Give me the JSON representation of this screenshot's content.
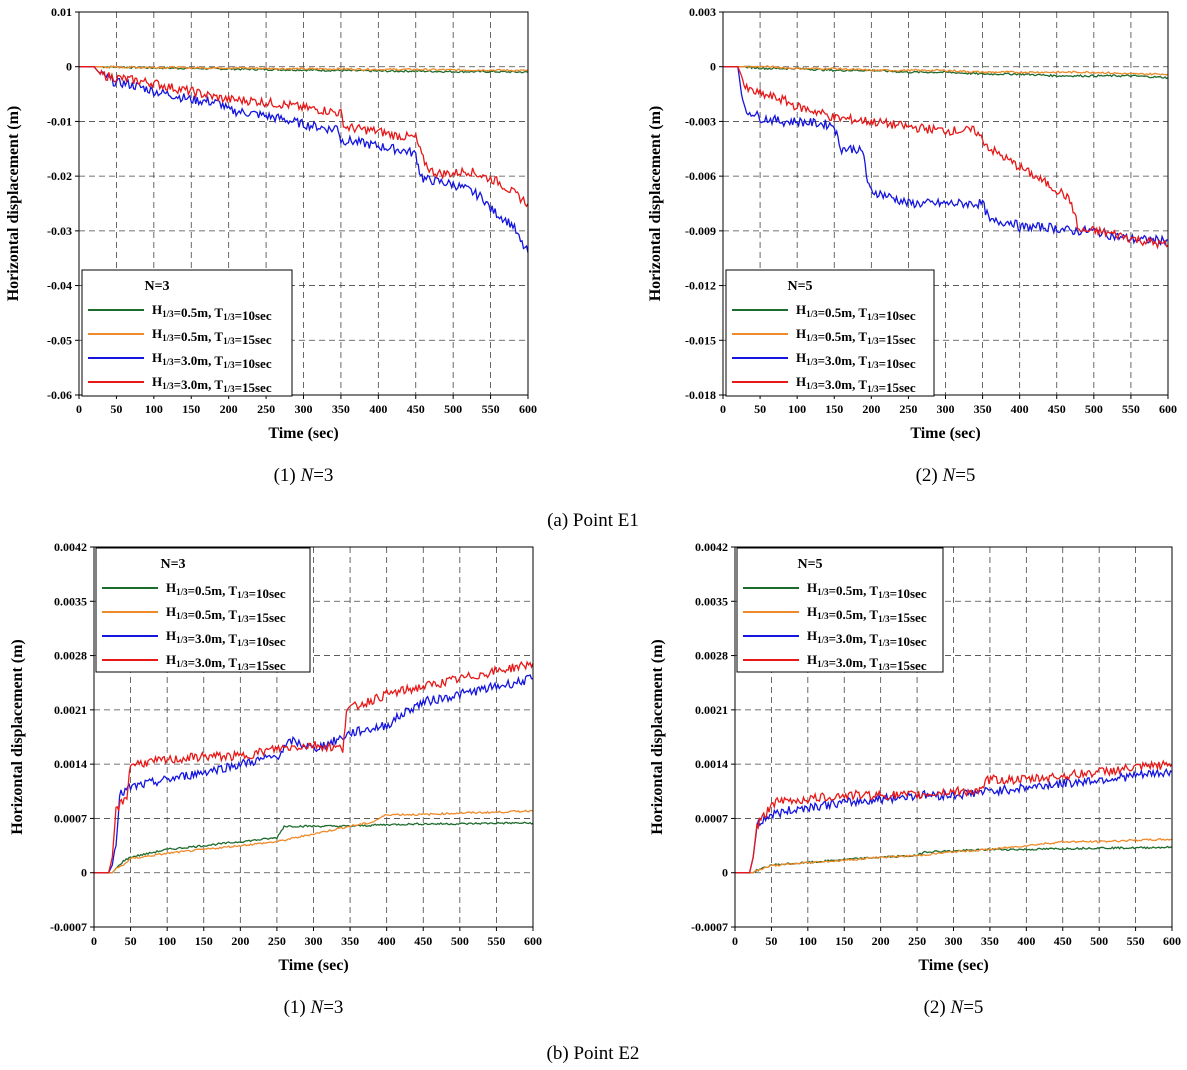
{
  "series_styles": [
    {
      "color": "#1e6b2e"
    },
    {
      "color": "#ef8a2a"
    },
    {
      "color": "#1515e0"
    },
    {
      "color": "#e81818"
    }
  ],
  "legend_labels": [
    {
      "h": "H",
      "hsub": "1/3",
      "hval": "=0.5m, ",
      "t": "T",
      "tsub": "1/3",
      "tval": "=10sec"
    },
    {
      "h": "H",
      "hsub": "1/3",
      "hval": "=0.5m, ",
      "t": "T",
      "tsub": "1/3",
      "tval": "=15sec"
    },
    {
      "h": "H",
      "hsub": "1/3",
      "hval": "=3.0m, ",
      "t": "T",
      "tsub": "1/3",
      "tval": "=10sec"
    },
    {
      "h": "H",
      "hsub": "1/3",
      "hval": "=3.0m, ",
      "t": "T",
      "tsub": "1/3",
      "tval": "=15sec"
    }
  ],
  "captions": {
    "group_a": "(a)  Point  E1",
    "group_b": "(b) Point  E2"
  },
  "chart_data": [
    {
      "type": "line",
      "panel": "a1",
      "subcaption": {
        "prefix": "(1)  ",
        "var": "N",
        "suffix": "=3"
      },
      "legend_title": "N=3",
      "xlabel": "Time (sec)",
      "ylabel": "Horizontal displacement (m)",
      "xlim": [
        0,
        600
      ],
      "ylim": [
        -0.06,
        0.01
      ],
      "xticks": [
        "0",
        "50",
        "100",
        "150",
        "200",
        "250",
        "300",
        "350",
        "400",
        "450",
        "500",
        "550",
        "600"
      ],
      "yticks": [
        "0.01",
        "0",
        "-0.01",
        "-0.02",
        "-0.03",
        "-0.04",
        "-0.05",
        "-0.06"
      ],
      "ytick_values": [
        0.01,
        0,
        -0.01,
        -0.02,
        -0.03,
        -0.04,
        -0.05,
        -0.06
      ],
      "grid": true,
      "legend_position": "bottom-left",
      "series": [
        {
          "name": "H1/3=0.5m, T1/3=10sec",
          "x": [
            0,
            25,
            60,
            100,
            150,
            200,
            250,
            300,
            350,
            400,
            450,
            500,
            550,
            600
          ],
          "y": [
            0,
            0,
            -0.0001,
            -0.0002,
            -0.0003,
            -0.0004,
            -0.0005,
            -0.0006,
            -0.0007,
            -0.0008,
            -0.0008,
            -0.0009,
            -0.0009,
            -0.001
          ]
        },
        {
          "name": "H1/3=0.5m, T1/3=15sec",
          "x": [
            0,
            25,
            60,
            100,
            150,
            200,
            250,
            300,
            350,
            400,
            450,
            500,
            550,
            600
          ],
          "y": [
            0,
            0,
            -0.0001,
            -0.0001,
            -0.0002,
            -0.0002,
            -0.0003,
            -0.0004,
            -0.0004,
            -0.0005,
            -0.0005,
            -0.0006,
            -0.0006,
            -0.0007
          ]
        },
        {
          "name": "H1/3=3.0m, T1/3=10sec",
          "x": [
            0,
            20,
            25,
            30,
            40,
            50,
            60,
            75,
            90,
            100,
            120,
            150,
            180,
            190,
            200,
            230,
            250,
            270,
            300,
            320,
            340,
            345,
            350,
            360,
            380,
            400,
            420,
            440,
            450,
            455,
            460,
            480,
            500,
            520,
            540,
            550,
            560,
            580,
            590,
            600
          ],
          "y": [
            0,
            0,
            -0.0008,
            -0.0015,
            -0.0022,
            -0.003,
            -0.003,
            -0.0035,
            -0.004,
            -0.0045,
            -0.005,
            -0.006,
            -0.0065,
            -0.0068,
            -0.008,
            -0.0085,
            -0.009,
            -0.0095,
            -0.0105,
            -0.011,
            -0.0115,
            -0.0105,
            -0.0135,
            -0.0135,
            -0.014,
            -0.0145,
            -0.015,
            -0.0155,
            -0.016,
            -0.019,
            -0.0205,
            -0.021,
            -0.0215,
            -0.0225,
            -0.024,
            -0.026,
            -0.027,
            -0.029,
            -0.032,
            -0.034
          ]
        },
        {
          "name": "H1/3=3.0m, T1/3=15sec",
          "x": [
            0,
            20,
            25,
            30,
            50,
            75,
            100,
            130,
            150,
            180,
            200,
            230,
            250,
            280,
            300,
            330,
            350,
            355,
            380,
            400,
            420,
            450,
            460,
            470,
            480,
            500,
            520,
            540,
            560,
            580,
            590,
            600
          ],
          "y": [
            0,
            0,
            -0.0008,
            -0.0015,
            -0.002,
            -0.0025,
            -0.003,
            -0.004,
            -0.0045,
            -0.0055,
            -0.006,
            -0.0062,
            -0.0065,
            -0.007,
            -0.0075,
            -0.008,
            -0.0085,
            -0.011,
            -0.0115,
            -0.0118,
            -0.0125,
            -0.013,
            -0.017,
            -0.019,
            -0.0195,
            -0.0195,
            -0.019,
            -0.02,
            -0.021,
            -0.023,
            -0.024,
            -0.025
          ]
        }
      ]
    },
    {
      "type": "line",
      "panel": "a2",
      "subcaption": {
        "prefix": "(2)  ",
        "var": "N",
        "suffix": "=5"
      },
      "legend_title": "N=5",
      "xlabel": "Time (sec)",
      "ylabel": "Horizontal displacement (m)",
      "xlim": [
        0,
        600
      ],
      "ylim": [
        -0.018,
        0.003
      ],
      "xticks": [
        "0",
        "50",
        "100",
        "150",
        "200",
        "250",
        "300",
        "350",
        "400",
        "450",
        "500",
        "550",
        "600"
      ],
      "yticks": [
        "0.003",
        "0",
        "-0.003",
        "-0.006",
        "-0.009",
        "-0.012",
        "-0.015",
        "-0.018"
      ],
      "ytick_values": [
        0.003,
        0,
        -0.003,
        -0.006,
        -0.009,
        -0.012,
        -0.015,
        -0.018
      ],
      "grid": true,
      "legend_position": "bottom-left",
      "series": [
        {
          "name": "H1/3=0.5m, T1/3=10sec",
          "x": [
            0,
            25,
            60,
            100,
            150,
            200,
            250,
            300,
            350,
            400,
            450,
            500,
            550,
            600
          ],
          "y": [
            0,
            0,
            -0.0001,
            -0.0001,
            -0.0002,
            -0.0002,
            -0.0003,
            -0.0003,
            -0.0004,
            -0.0004,
            -0.0005,
            -0.0005,
            -0.0005,
            -0.0006
          ]
        },
        {
          "name": "H1/3=0.5m, T1/3=15sec",
          "x": [
            0,
            25,
            60,
            100,
            150,
            200,
            250,
            300,
            350,
            400,
            450,
            500,
            550,
            600
          ],
          "y": [
            0,
            0,
            0,
            -0.0001,
            -0.0001,
            -0.0002,
            -0.0002,
            -0.0002,
            -0.0003,
            -0.0003,
            -0.0003,
            -0.0003,
            -0.0004,
            -0.0004
          ]
        },
        {
          "name": "H1/3=3.0m, T1/3=10sec",
          "x": [
            0,
            20,
            25,
            30,
            40,
            50,
            80,
            100,
            150,
            155,
            160,
            180,
            190,
            195,
            200,
            230,
            250,
            300,
            350,
            360,
            390,
            400,
            440,
            470,
            500,
            530,
            560,
            600
          ],
          "y": [
            0,
            0,
            -0.0015,
            -0.0025,
            -0.0025,
            -0.0028,
            -0.003,
            -0.003,
            -0.0032,
            -0.004,
            -0.0045,
            -0.0045,
            -0.0048,
            -0.0065,
            -0.0068,
            -0.0072,
            -0.0075,
            -0.0075,
            -0.0075,
            -0.0085,
            -0.0085,
            -0.0088,
            -0.0088,
            -0.009,
            -0.009,
            -0.0093,
            -0.0095,
            -0.0095
          ]
        },
        {
          "name": "H1/3=3.0m, T1/3=15sec",
          "x": [
            0,
            20,
            25,
            30,
            50,
            80,
            100,
            130,
            150,
            200,
            250,
            300,
            340,
            350,
            360,
            380,
            400,
            420,
            440,
            460,
            470,
            480,
            500,
            530,
            560,
            600
          ],
          "y": [
            0,
            0,
            -0.0005,
            -0.0012,
            -0.0015,
            -0.0018,
            -0.0022,
            -0.0025,
            -0.0028,
            -0.003,
            -0.0033,
            -0.0035,
            -0.0035,
            -0.004,
            -0.0045,
            -0.005,
            -0.0055,
            -0.006,
            -0.0065,
            -0.007,
            -0.0075,
            -0.009,
            -0.009,
            -0.0092,
            -0.0095,
            -0.0098
          ]
        }
      ]
    },
    {
      "type": "line",
      "panel": "b1",
      "subcaption": {
        "prefix": "(1)  ",
        "var": "N",
        "suffix": "=3"
      },
      "legend_title": "N=3",
      "xlabel": "Time (sec)",
      "ylabel": "Horizontal displacement (m)",
      "xlim": [
        0,
        600
      ],
      "ylim": [
        -0.0007,
        0.0042
      ],
      "xticks": [
        "0",
        "50",
        "100",
        "150",
        "200",
        "250",
        "300",
        "350",
        "400",
        "450",
        "500",
        "550",
        "600"
      ],
      "yticks": [
        "0.0042",
        "0.0035",
        "0.0028",
        "0.0021",
        "0.0014",
        "0.0007",
        "0",
        "-0.0007"
      ],
      "ytick_values": [
        0.0042,
        0.0035,
        0.0028,
        0.0021,
        0.0014,
        0.0007,
        0,
        -0.0007
      ],
      "grid": true,
      "legend_position": "top-left",
      "series": [
        {
          "name": "H1/3=0.5m, T1/3=10sec",
          "x": [
            0,
            25,
            30,
            40,
            50,
            100,
            150,
            200,
            250,
            260,
            300,
            350,
            400,
            450,
            500,
            550,
            600
          ],
          "y": [
            0,
            0,
            5e-05,
            0.00015,
            0.0002,
            0.0003,
            0.00035,
            0.0004,
            0.00045,
            0.0006,
            0.0006,
            0.0006,
            0.00062,
            0.00063,
            0.00063,
            0.00064,
            0.00064
          ]
        },
        {
          "name": "H1/3=0.5m, T1/3=15sec",
          "x": [
            0,
            25,
            30,
            40,
            50,
            100,
            150,
            200,
            250,
            300,
            350,
            380,
            400,
            450,
            500,
            550,
            600
          ],
          "y": [
            0,
            0,
            5e-05,
            0.0001,
            0.00018,
            0.00025,
            0.0003,
            0.00035,
            0.0004,
            0.0005,
            0.0006,
            0.00065,
            0.00075,
            0.00075,
            0.00077,
            0.00078,
            0.0008
          ]
        },
        {
          "name": "H1/3=3.0m, T1/3=10sec",
          "x": [
            0,
            20,
            25,
            30,
            35,
            50,
            100,
            150,
            200,
            250,
            270,
            300,
            330,
            350,
            400,
            430,
            450,
            500,
            550,
            600
          ],
          "y": [
            0,
            0,
            0.0001,
            0.0004,
            0.001,
            0.0011,
            0.0012,
            0.0013,
            0.0014,
            0.0015,
            0.0017,
            0.0016,
            0.0017,
            0.0018,
            0.0019,
            0.0021,
            0.0022,
            0.0023,
            0.0024,
            0.0025
          ]
        },
        {
          "name": "H1/3=3.0m, T1/3=15sec",
          "x": [
            0,
            20,
            25,
            30,
            45,
            50,
            100,
            150,
            200,
            250,
            300,
            340,
            345,
            400,
            450,
            500,
            550,
            600
          ],
          "y": [
            0,
            0,
            0.0002,
            0.0008,
            0.001,
            0.0014,
            0.00145,
            0.0015,
            0.0015,
            0.0016,
            0.00165,
            0.0016,
            0.0021,
            0.0023,
            0.0024,
            0.0025,
            0.0026,
            0.0027
          ]
        }
      ]
    },
    {
      "type": "line",
      "panel": "b2",
      "subcaption": {
        "prefix": "(2)  ",
        "var": "N",
        "suffix": "=5"
      },
      "legend_title": "N=5",
      "xlabel": "Time (sec)",
      "ylabel": "Horizontal displacement (m)",
      "xlim": [
        0,
        600
      ],
      "ylim": [
        -0.0007,
        0.0042
      ],
      "xticks": [
        "0",
        "50",
        "100",
        "150",
        "200",
        "250",
        "300",
        "350",
        "400",
        "450",
        "500",
        "550",
        "600"
      ],
      "yticks": [
        "0.0042",
        "0.0035",
        "0.0028",
        "0.0021",
        "0.0014",
        "0.0007",
        "0",
        "-0.0007"
      ],
      "ytick_values": [
        0.0042,
        0.0035,
        0.0028,
        0.0021,
        0.0014,
        0.0007,
        0,
        -0.0007
      ],
      "grid": true,
      "legend_position": "top-left",
      "series": [
        {
          "name": "H1/3=0.5m, T1/3=10sec",
          "x": [
            0,
            25,
            30,
            40,
            50,
            100,
            150,
            200,
            250,
            260,
            300,
            350,
            400,
            450,
            500,
            550,
            600
          ],
          "y": [
            0,
            0,
            3e-05,
            6e-05,
            0.0001,
            0.00013,
            0.00017,
            0.0002,
            0.00022,
            0.00027,
            0.00028,
            0.0003,
            0.0003,
            0.00031,
            0.00032,
            0.00032,
            0.00033
          ]
        },
        {
          "name": "H1/3=0.5m, T1/3=15sec",
          "x": [
            0,
            25,
            30,
            40,
            50,
            100,
            150,
            200,
            250,
            300,
            350,
            400,
            450,
            500,
            550,
            600
          ],
          "y": [
            0,
            0,
            3e-05,
            6e-05,
            9e-05,
            0.00013,
            0.00016,
            0.0002,
            0.00022,
            0.00027,
            0.0003,
            0.00035,
            0.0004,
            0.0004,
            0.00042,
            0.00043
          ]
        },
        {
          "name": "H1/3=3.0m, T1/3=10sec",
          "x": [
            0,
            20,
            25,
            30,
            40,
            50,
            100,
            150,
            200,
            250,
            300,
            350,
            400,
            450,
            500,
            550,
            600
          ],
          "y": [
            0,
            0,
            0.0002,
            0.0006,
            0.0007,
            0.00075,
            0.00085,
            0.0009,
            0.00095,
            0.001,
            0.001,
            0.00105,
            0.0011,
            0.00115,
            0.0012,
            0.00125,
            0.0013
          ]
        },
        {
          "name": "H1/3=3.0m, T1/3=15sec",
          "x": [
            0,
            20,
            25,
            30,
            45,
            50,
            100,
            150,
            200,
            250,
            300,
            340,
            345,
            400,
            450,
            500,
            550,
            600
          ],
          "y": [
            0,
            0,
            0.0002,
            0.0006,
            0.0008,
            0.0009,
            0.00095,
            0.001,
            0.001,
            0.001,
            0.00105,
            0.00105,
            0.0012,
            0.0012,
            0.00125,
            0.0013,
            0.00135,
            0.0014
          ]
        }
      ]
    }
  ]
}
